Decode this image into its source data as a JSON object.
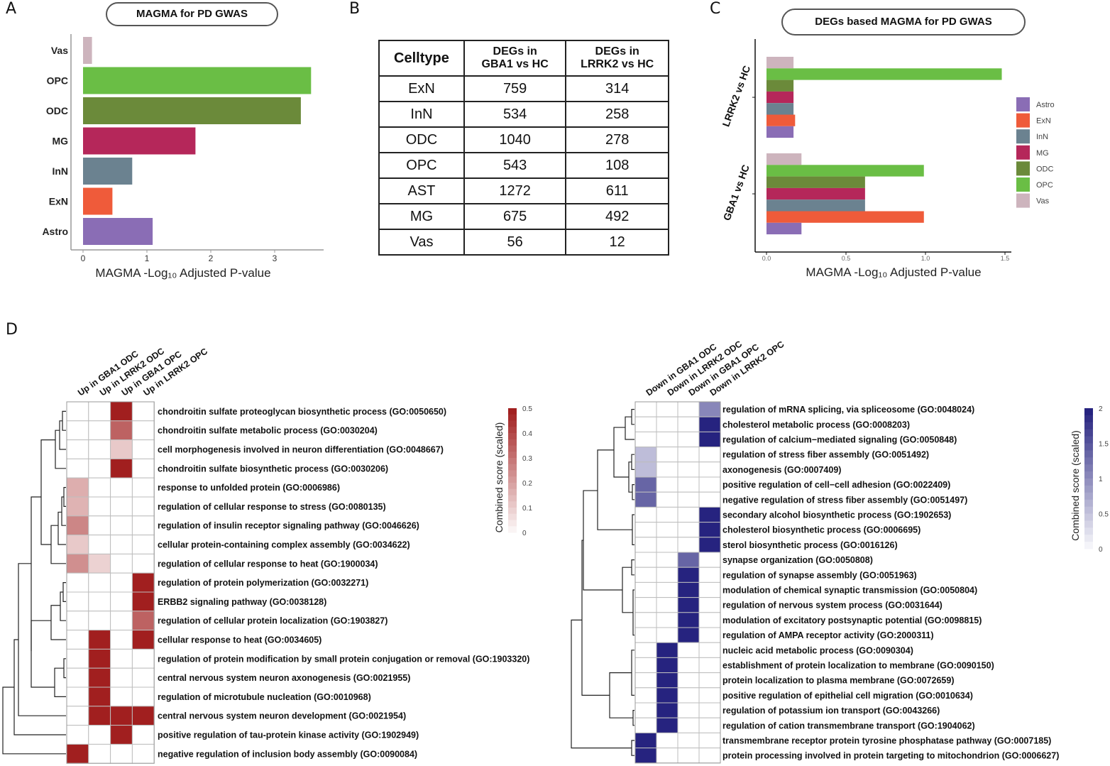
{
  "panels": {
    "a": {
      "letter": "A",
      "title": "MAGMA for PD GWAS"
    },
    "b": {
      "letter": "B"
    },
    "c": {
      "letter": "C",
      "title": "DEGs based MAGMA for PD GWAS"
    },
    "d": {
      "letter": "D"
    }
  },
  "chart_data": [
    {
      "id": "panel-a",
      "type": "bar",
      "orientation": "horizontal",
      "title": "MAGMA for PD GWAS",
      "xlabel": "MAGMA -Log₁₀ Adjusted P-value",
      "ylabel": "",
      "xlim": [
        0,
        3.7
      ],
      "xticks": [
        "0",
        "1",
        "2",
        "3"
      ],
      "xtick_values": [
        0,
        1,
        2,
        3
      ],
      "categories": [
        "Vas",
        "OPC",
        "ODC",
        "MG",
        "InN",
        "ExN",
        "Astro"
      ],
      "values": [
        0.14,
        3.57,
        3.41,
        1.76,
        0.77,
        0.46,
        1.09
      ],
      "colors": [
        "#cdb4bd",
        "#6abe45",
        "#6b8a3a",
        "#b5275a",
        "#6b8290",
        "#ef5b3a",
        "#8a6db5"
      ],
      "grid": false
    },
    {
      "id": "panel-b",
      "type": "table",
      "columns": [
        "Celltype",
        "DEGs in GBA1 vs HC",
        "DEGs in LRRK2 vs HC"
      ],
      "rows": [
        [
          "ExN",
          "759",
          "314"
        ],
        [
          "InN",
          "534",
          "258"
        ],
        [
          "ODC",
          "1040",
          "278"
        ],
        [
          "OPC",
          "543",
          "108"
        ],
        [
          "AST",
          "1272",
          "611"
        ],
        [
          "MG",
          "675",
          "492"
        ],
        [
          "Vas",
          "56",
          "12"
        ]
      ]
    },
    {
      "id": "panel-c",
      "type": "bar",
      "orientation": "horizontal",
      "grouped": true,
      "title": "DEGs based MAGMA for PD GWAS",
      "xlabel": "MAGMA -Log₁₀ Adjusted P-value",
      "xlim": [
        0,
        1.55
      ],
      "xticks": [
        "0.0",
        "0.5",
        "1.0",
        "1.5"
      ],
      "xtick_values": [
        0,
        0.5,
        1.0,
        1.5
      ],
      "categories": [
        "LRRK2 vs HC",
        "GBA1 vs HC"
      ],
      "legend_position": "right",
      "series": [
        {
          "name": "Vas",
          "color": "#cdb4bd",
          "values": [
            0.17,
            0.22
          ]
        },
        {
          "name": "OPC",
          "color": "#6abe45",
          "values": [
            1.48,
            0.99
          ]
        },
        {
          "name": "ODC",
          "color": "#6b8a3a",
          "values": [
            0.17,
            0.62
          ]
        },
        {
          "name": "MG",
          "color": "#b5275a",
          "values": [
            0.17,
            0.62
          ]
        },
        {
          "name": "InN",
          "color": "#6b8290",
          "values": [
            0.17,
            0.62
          ]
        },
        {
          "name": "ExN",
          "color": "#ef5b3a",
          "values": [
            0.18,
            0.99
          ]
        },
        {
          "name": "Astro",
          "color": "#8a6db5",
          "values": [
            0.17,
            0.22
          ]
        }
      ],
      "legend": [
        "Astro",
        "ExN",
        "InN",
        "MG",
        "ODC",
        "OPC",
        "Vas"
      ]
    },
    {
      "id": "panel-d-up",
      "type": "heatmap",
      "colorbar_label": "Combined score (scaled)",
      "colorbar_ticks": [
        "0",
        "0.1",
        "0.2",
        "0.3",
        "0.4",
        "0.5"
      ],
      "vmin": 0,
      "vmax": 0.5,
      "color_low": "#ffffff",
      "color_high": "#a11f1f",
      "columns": [
        "Up in GBA1 ODC",
        "Up in LRRK2 ODC",
        "Up in GBA1 OPC",
        "Up in LRRK2 OPC"
      ],
      "rows": [
        {
          "label": "chondroitin sulfate proteoglycan biosynthetic process (GO:0050650)",
          "values": [
            0,
            0,
            0.5,
            0
          ]
        },
        {
          "label": "chondroitin sulfate metabolic process (GO:0030204)",
          "values": [
            0,
            0,
            0.35,
            0
          ]
        },
        {
          "label": "cell morphogenesis involved in neuron differentiation (GO:0048667)",
          "values": [
            0,
            0,
            0.12,
            0
          ]
        },
        {
          "label": "chondroitin sulfate biosynthetic process (GO:0030206)",
          "values": [
            0,
            0,
            0.5,
            0
          ]
        },
        {
          "label": "response to unfolded protein (GO:0006986)",
          "values": [
            0.18,
            0,
            0,
            0
          ]
        },
        {
          "label": "regulation of cellular response to stress (GO:0080135)",
          "values": [
            0.17,
            0,
            0,
            0
          ]
        },
        {
          "label": "regulation of insulin receptor signaling pathway (GO:0046626)",
          "values": [
            0.27,
            0,
            0,
            0
          ]
        },
        {
          "label": "cellular protein-containing complex assembly (GO:0034622)",
          "values": [
            0.12,
            0,
            0,
            0
          ]
        },
        {
          "label": "regulation of cellular response to heat (GO:1900034)",
          "values": [
            0.25,
            0.1,
            0,
            0
          ]
        },
        {
          "label": "regulation of protein polymerization (GO:0032271)",
          "values": [
            0,
            0,
            0,
            0.5
          ]
        },
        {
          "label": "ERBB2 signaling pathway (GO:0038128)",
          "values": [
            0,
            0,
            0,
            0.5
          ]
        },
        {
          "label": "regulation of cellular protein localization (GO:1903827)",
          "values": [
            0,
            0,
            0,
            0.35
          ]
        },
        {
          "label": "cellular response to heat (GO:0034605)",
          "values": [
            0,
            0.5,
            0,
            0.5
          ]
        },
        {
          "label": "regulation of protein modification by small protein conjugation or removal (GO:1903320)",
          "values": [
            0,
            0.5,
            0,
            0
          ]
        },
        {
          "label": "central nervous system neuron axonogenesis (GO:0021955)",
          "values": [
            0,
            0.5,
            0,
            0
          ]
        },
        {
          "label": "regulation of microtubule nucleation (GO:0010968)",
          "values": [
            0,
            0.5,
            0,
            0
          ]
        },
        {
          "label": "central nervous system neuron development (GO:0021954)",
          "values": [
            0,
            0.5,
            0.5,
            0.5
          ]
        },
        {
          "label": "positive regulation of tau-protein kinase activity (GO:1902949)",
          "values": [
            0,
            0,
            0.5,
            0
          ]
        },
        {
          "label": "negative regulation of inclusion body assembly (GO:0090084)",
          "values": [
            0.5,
            0,
            0,
            0
          ]
        }
      ]
    },
    {
      "id": "panel-d-down",
      "type": "heatmap",
      "colorbar_label": "Combined score (scaled)",
      "colorbar_ticks": [
        "0",
        "0.5",
        "1",
        "1.5",
        "2"
      ],
      "vmin": 0,
      "vmax": 2,
      "color_low": "#ffffff",
      "color_high": "#26237f",
      "columns": [
        "Down in GBA1 ODC",
        "Down in LRRK2 ODC",
        "Down in GBA1 OPC",
        "Down in LRRK2 OPC"
      ],
      "rows": [
        {
          "label": "regulation of mRNA splicing, via spliceosome (GO:0048024)",
          "values": [
            0,
            0,
            0,
            1.1
          ]
        },
        {
          "label": "cholesterol metabolic process (GO:0008203)",
          "values": [
            0,
            0,
            0,
            2
          ]
        },
        {
          "label": "regulation of calcium−mediated signaling (GO:0050848)",
          "values": [
            0,
            0,
            0,
            2
          ]
        },
        {
          "label": "regulation of stress fiber assembly (GO:0051492)",
          "values": [
            0.6,
            0,
            0,
            0
          ]
        },
        {
          "label": "axonogenesis (GO:0007409)",
          "values": [
            0.6,
            0,
            0,
            0
          ]
        },
        {
          "label": "positive regulation of cell−cell adhesion (GO:0022409)",
          "values": [
            1.4,
            0,
            0,
            0
          ]
        },
        {
          "label": "negative regulation of stress fiber assembly (GO:0051497)",
          "values": [
            1.4,
            0,
            0,
            0
          ]
        },
        {
          "label": "secondary alcohol biosynthetic process (GO:1902653)",
          "values": [
            0,
            0,
            0,
            2
          ]
        },
        {
          "label": "cholesterol biosynthetic process (GO:0006695)",
          "values": [
            0,
            0,
            0,
            2
          ]
        },
        {
          "label": "sterol biosynthetic process (GO:0016126)",
          "values": [
            0,
            0,
            0,
            2
          ]
        },
        {
          "label": "synapse organization (GO:0050808)",
          "values": [
            0,
            0,
            1.4,
            0
          ]
        },
        {
          "label": "regulation of synapse assembly (GO:0051963)",
          "values": [
            0,
            0,
            2,
            0
          ]
        },
        {
          "label": "modulation of chemical synaptic transmission (GO:0050804)",
          "values": [
            0,
            0,
            2,
            0
          ]
        },
        {
          "label": "regulation of nervous system process (GO:0031644)",
          "values": [
            0,
            0,
            2,
            0
          ]
        },
        {
          "label": "modulation of excitatory postsynaptic potential (GO:0098815)",
          "values": [
            0,
            0,
            2,
            0
          ]
        },
        {
          "label": "regulation of AMPA receptor activity (GO:2000311)",
          "values": [
            0,
            0,
            2,
            0
          ]
        },
        {
          "label": "nucleic acid metabolic process (GO:0090304)",
          "values": [
            0,
            2,
            0,
            0
          ]
        },
        {
          "label": "establishment of protein localization to membrane (GO:0090150)",
          "values": [
            0,
            2,
            0,
            0
          ]
        },
        {
          "label": "protein localization to plasma membrane (GO:0072659)",
          "values": [
            0,
            2,
            0,
            0
          ]
        },
        {
          "label": "positive regulation of epithelial cell migration (GO:0010634)",
          "values": [
            0,
            2,
            0,
            0
          ]
        },
        {
          "label": "regulation of potassium ion transport (GO:0043266)",
          "values": [
            0,
            2,
            0,
            0
          ]
        },
        {
          "label": "regulation of cation transmembrane transport (GO:1904062)",
          "values": [
            0,
            2,
            0,
            0
          ]
        },
        {
          "label": "transmembrane receptor protein tyrosine phosphatase pathway (GO:0007185)",
          "values": [
            2,
            0,
            0,
            0
          ]
        },
        {
          "label": "protein processing involved in protein targeting to mitochondrion (GO:0006627)",
          "values": [
            2,
            0,
            0,
            0
          ]
        }
      ]
    }
  ]
}
